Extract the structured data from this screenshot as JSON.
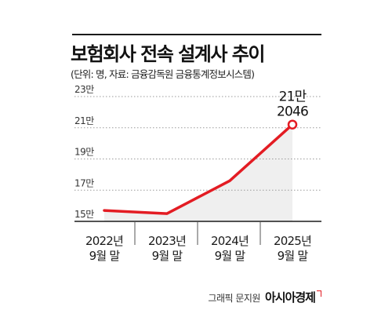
{
  "title": "보험회사 전속 설계사 추이",
  "source_note": "(단위: 명, 자료: 금융감독원 금융통계정보시스템)",
  "credit": {
    "label": "그래픽 문지원",
    "brand": "아시아경제"
  },
  "colors": {
    "line": "#e31c23",
    "area": "#efefef",
    "grid": "#9a9a9a",
    "text": "#1a1a1a"
  },
  "chart_data": {
    "type": "area",
    "categories": [
      [
        "2022년",
        "9월 말"
      ],
      [
        "2023년",
        "9월 말"
      ],
      [
        "2024년",
        "9월 말"
      ],
      [
        "2025년",
        "9월 말"
      ]
    ],
    "values": [
      157000,
      155000,
      176000,
      212046
    ],
    "y_ticks": [
      {
        "value": 150000,
        "label": "15만"
      },
      {
        "value": 170000,
        "label": "17만"
      },
      {
        "value": 190000,
        "label": "19만"
      },
      {
        "value": 210000,
        "label": "21만"
      },
      {
        "value": 230000,
        "label": "23만"
      }
    ],
    "ylim": [
      150000,
      230000
    ],
    "grid": "dotted-horizontal",
    "annotation": {
      "index": 3,
      "lines": [
        "21만",
        "2046"
      ]
    }
  }
}
